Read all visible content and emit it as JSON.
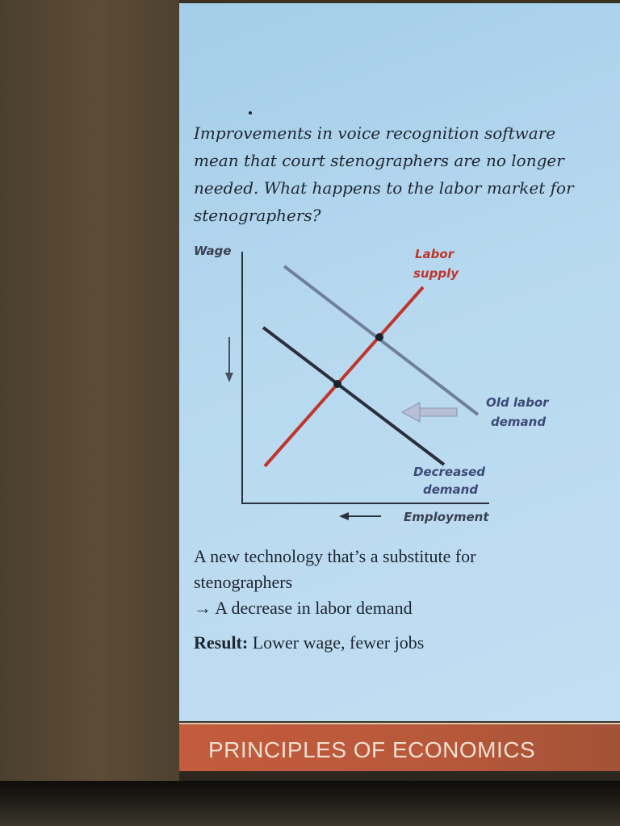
{
  "slide": {
    "question": "Improvements in voice recognition software mean that court stenographers are no longer needed. What happens to the labor market for stenographers?",
    "graph": {
      "y_label": "Wage",
      "x_label": "Employment",
      "supply_label_1": "Labor",
      "supply_label_2": "supply",
      "old_demand_label_1": "Old labor",
      "old_demand_label_2": "demand",
      "new_demand_label_1": "Decreased",
      "new_demand_label_2": "demand",
      "colors": {
        "supply": "#c0352b",
        "old_demand": "#6f7f9c",
        "new_demand": "#2b2f3a",
        "arrow": "#b6bfd6"
      }
    },
    "text_line_1": "A new technology that’s a substitute for",
    "text_line_2": "stenographers",
    "text_line_3": "→ A decrease in labor demand",
    "result_label": "Result:",
    "result_text": " Lower wage, fewer jobs"
  },
  "footer": {
    "title": "PRINCIPLES OF ECONOMICS"
  }
}
